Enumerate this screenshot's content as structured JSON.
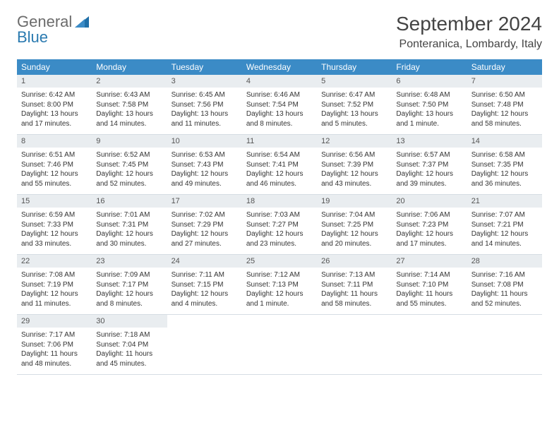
{
  "logo": {
    "text1": "General",
    "text2": "Blue"
  },
  "title": "September 2024",
  "location": "Ponteranica, Lombardy, Italy",
  "colors": {
    "header_bg": "#3b8bc6",
    "header_text": "#ffffff",
    "daynum_bg": "#e9edf0",
    "daynum_text": "#555555",
    "body_text": "#333333",
    "rule": "#d5dde4",
    "logo_gray": "#6b6b6b",
    "logo_blue": "#2a7ab0"
  },
  "typography": {
    "title_fontsize": 28,
    "location_fontsize": 16,
    "header_fontsize": 12,
    "daynum_fontsize": 11,
    "cell_fontsize": 10
  },
  "day_names": [
    "Sunday",
    "Monday",
    "Tuesday",
    "Wednesday",
    "Thursday",
    "Friday",
    "Saturday"
  ],
  "weeks": [
    [
      {
        "n": "1",
        "sr": "Sunrise: 6:42 AM",
        "ss": "Sunset: 8:00 PM",
        "dl": "Daylight: 13 hours and 17 minutes."
      },
      {
        "n": "2",
        "sr": "Sunrise: 6:43 AM",
        "ss": "Sunset: 7:58 PM",
        "dl": "Daylight: 13 hours and 14 minutes."
      },
      {
        "n": "3",
        "sr": "Sunrise: 6:45 AM",
        "ss": "Sunset: 7:56 PM",
        "dl": "Daylight: 13 hours and 11 minutes."
      },
      {
        "n": "4",
        "sr": "Sunrise: 6:46 AM",
        "ss": "Sunset: 7:54 PM",
        "dl": "Daylight: 13 hours and 8 minutes."
      },
      {
        "n": "5",
        "sr": "Sunrise: 6:47 AM",
        "ss": "Sunset: 7:52 PM",
        "dl": "Daylight: 13 hours and 5 minutes."
      },
      {
        "n": "6",
        "sr": "Sunrise: 6:48 AM",
        "ss": "Sunset: 7:50 PM",
        "dl": "Daylight: 13 hours and 1 minute."
      },
      {
        "n": "7",
        "sr": "Sunrise: 6:50 AM",
        "ss": "Sunset: 7:48 PM",
        "dl": "Daylight: 12 hours and 58 minutes."
      }
    ],
    [
      {
        "n": "8",
        "sr": "Sunrise: 6:51 AM",
        "ss": "Sunset: 7:46 PM",
        "dl": "Daylight: 12 hours and 55 minutes."
      },
      {
        "n": "9",
        "sr": "Sunrise: 6:52 AM",
        "ss": "Sunset: 7:45 PM",
        "dl": "Daylight: 12 hours and 52 minutes."
      },
      {
        "n": "10",
        "sr": "Sunrise: 6:53 AM",
        "ss": "Sunset: 7:43 PM",
        "dl": "Daylight: 12 hours and 49 minutes."
      },
      {
        "n": "11",
        "sr": "Sunrise: 6:54 AM",
        "ss": "Sunset: 7:41 PM",
        "dl": "Daylight: 12 hours and 46 minutes."
      },
      {
        "n": "12",
        "sr": "Sunrise: 6:56 AM",
        "ss": "Sunset: 7:39 PM",
        "dl": "Daylight: 12 hours and 43 minutes."
      },
      {
        "n": "13",
        "sr": "Sunrise: 6:57 AM",
        "ss": "Sunset: 7:37 PM",
        "dl": "Daylight: 12 hours and 39 minutes."
      },
      {
        "n": "14",
        "sr": "Sunrise: 6:58 AM",
        "ss": "Sunset: 7:35 PM",
        "dl": "Daylight: 12 hours and 36 minutes."
      }
    ],
    [
      {
        "n": "15",
        "sr": "Sunrise: 6:59 AM",
        "ss": "Sunset: 7:33 PM",
        "dl": "Daylight: 12 hours and 33 minutes."
      },
      {
        "n": "16",
        "sr": "Sunrise: 7:01 AM",
        "ss": "Sunset: 7:31 PM",
        "dl": "Daylight: 12 hours and 30 minutes."
      },
      {
        "n": "17",
        "sr": "Sunrise: 7:02 AM",
        "ss": "Sunset: 7:29 PM",
        "dl": "Daylight: 12 hours and 27 minutes."
      },
      {
        "n": "18",
        "sr": "Sunrise: 7:03 AM",
        "ss": "Sunset: 7:27 PM",
        "dl": "Daylight: 12 hours and 23 minutes."
      },
      {
        "n": "19",
        "sr": "Sunrise: 7:04 AM",
        "ss": "Sunset: 7:25 PM",
        "dl": "Daylight: 12 hours and 20 minutes."
      },
      {
        "n": "20",
        "sr": "Sunrise: 7:06 AM",
        "ss": "Sunset: 7:23 PM",
        "dl": "Daylight: 12 hours and 17 minutes."
      },
      {
        "n": "21",
        "sr": "Sunrise: 7:07 AM",
        "ss": "Sunset: 7:21 PM",
        "dl": "Daylight: 12 hours and 14 minutes."
      }
    ],
    [
      {
        "n": "22",
        "sr": "Sunrise: 7:08 AM",
        "ss": "Sunset: 7:19 PM",
        "dl": "Daylight: 12 hours and 11 minutes."
      },
      {
        "n": "23",
        "sr": "Sunrise: 7:09 AM",
        "ss": "Sunset: 7:17 PM",
        "dl": "Daylight: 12 hours and 8 minutes."
      },
      {
        "n": "24",
        "sr": "Sunrise: 7:11 AM",
        "ss": "Sunset: 7:15 PM",
        "dl": "Daylight: 12 hours and 4 minutes."
      },
      {
        "n": "25",
        "sr": "Sunrise: 7:12 AM",
        "ss": "Sunset: 7:13 PM",
        "dl": "Daylight: 12 hours and 1 minute."
      },
      {
        "n": "26",
        "sr": "Sunrise: 7:13 AM",
        "ss": "Sunset: 7:11 PM",
        "dl": "Daylight: 11 hours and 58 minutes."
      },
      {
        "n": "27",
        "sr": "Sunrise: 7:14 AM",
        "ss": "Sunset: 7:10 PM",
        "dl": "Daylight: 11 hours and 55 minutes."
      },
      {
        "n": "28",
        "sr": "Sunrise: 7:16 AM",
        "ss": "Sunset: 7:08 PM",
        "dl": "Daylight: 11 hours and 52 minutes."
      }
    ],
    [
      {
        "n": "29",
        "sr": "Sunrise: 7:17 AM",
        "ss": "Sunset: 7:06 PM",
        "dl": "Daylight: 11 hours and 48 minutes."
      },
      {
        "n": "30",
        "sr": "Sunrise: 7:18 AM",
        "ss": "Sunset: 7:04 PM",
        "dl": "Daylight: 11 hours and 45 minutes."
      },
      null,
      null,
      null,
      null,
      null
    ]
  ]
}
